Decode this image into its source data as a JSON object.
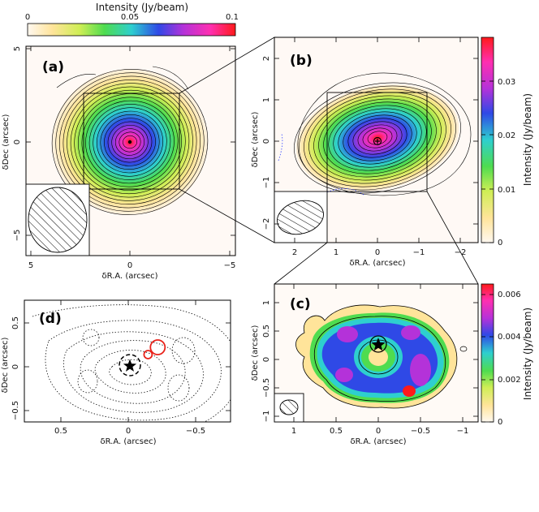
{
  "figure": {
    "colorbar_top": {
      "label": "Intensity (Jy/beam)",
      "ticks": [
        "0",
        "0.05",
        "0.1"
      ],
      "range": [
        0,
        0.12
      ]
    },
    "colorbar_b": {
      "label": "Intensity (Jy/beam)",
      "ticks": [
        "0",
        "0.01",
        "0.02",
        "0.03"
      ],
      "range": [
        0,
        0.038
      ]
    },
    "colorbar_c": {
      "label": "Intensity (Jy/beam)",
      "ticks": [
        "0",
        "0.002",
        "0.004",
        "0.006"
      ],
      "range": [
        0,
        0.0065
      ]
    },
    "panels": [
      {
        "id": "a",
        "label": "(a)",
        "xlabel": "δR.A. (arcsec)",
        "ylabel": "δDec (arcsec)",
        "xticks": [
          "5",
          "0",
          "−5"
        ],
        "yticks": [
          "5",
          "0",
          "−5"
        ]
      },
      {
        "id": "b",
        "label": "(b)",
        "xlabel": "δR.A. (arcsec)",
        "ylabel": "δDec (arcsec)",
        "xticks": [
          "2",
          "1",
          "0",
          "−1",
          "−2"
        ],
        "yticks": [
          "2",
          "1",
          "0",
          "−1",
          "−2"
        ]
      },
      {
        "id": "c",
        "label": "(c)",
        "xlabel": "δR.A. (arcsec)",
        "ylabel": "δDec (arcsec)",
        "xticks": [
          "1",
          "0.5",
          "0",
          "−0.5",
          "−1"
        ],
        "yticks": [
          "1",
          "0.5",
          "0",
          "−0.5",
          "−1"
        ]
      },
      {
        "id": "d",
        "label": "(d)",
        "xlabel": "δR.A. (arcsec)",
        "ylabel": "δDec (arcsec)",
        "xticks": [
          "0.5",
          "0",
          "−0.5"
        ],
        "yticks": [
          "0.5",
          "0",
          "−0.5"
        ]
      }
    ]
  },
  "colors": {
    "colormap": [
      "#fff8f0",
      "#ffe49a",
      "#cfee55",
      "#4fdc4f",
      "#2ecfcf",
      "#2f49e6",
      "#b432d9",
      "#ff2fb0",
      "#ff1a1a"
    ],
    "marker_circle": "#e8221a"
  },
  "chart_data": [
    {
      "type": "heatmap",
      "panel": "a",
      "x_range": [
        5.5,
        -5.5
      ],
      "y_range": [
        -5.5,
        5.5
      ],
      "peak_offset": [
        0,
        0
      ],
      "contour_count": 20
    },
    {
      "type": "heatmap",
      "panel": "b",
      "x_range": [
        2.3,
        -2.3
      ],
      "y_range": [
        -2.3,
        2.3
      ],
      "peak_offset": [
        0,
        0
      ]
    },
    {
      "type": "heatmap",
      "panel": "c",
      "x_range": [
        1.25,
        -1.25
      ],
      "y_range": [
        -1.25,
        1.25
      ],
      "star": [
        0,
        0
      ]
    },
    {
      "type": "scatter",
      "panel": "d",
      "x_range": [
        0.75,
        -0.75
      ],
      "y_range": [
        -0.75,
        0.75
      ],
      "star": [
        0,
        0
      ],
      "red_circles": [
        [
          -0.22,
          0.17
        ],
        [
          -0.15,
          0.08
        ]
      ]
    }
  ]
}
